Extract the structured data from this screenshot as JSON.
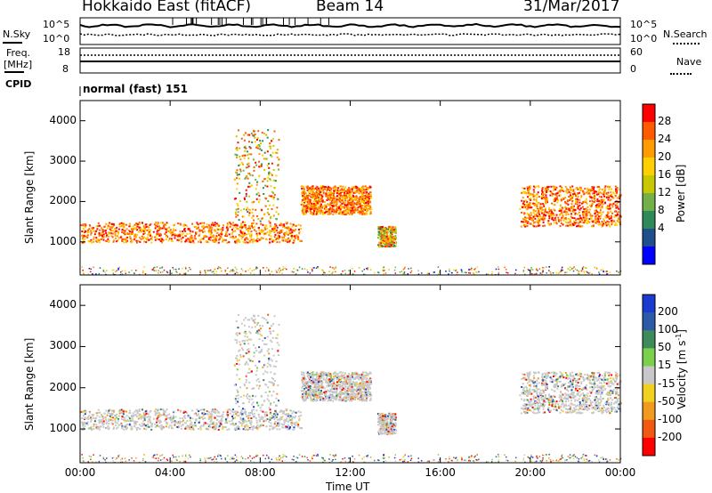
{
  "header": {
    "station": "Hokkaido East (fitACF)",
    "beam": "Beam 14",
    "date": "31/Mar/2017"
  },
  "sidebar_labels": {
    "nsky": "N.Sky",
    "freq": "Freq.",
    "freq_unit": "[MHz]",
    "cpid": "CPID",
    "nsearch": "N.Search",
    "nave": "Nave"
  },
  "top_axes": {
    "nsky_hi": "10^5",
    "nsky_lo": "10^0",
    "nsearch_hi": "10^5",
    "nsearch_lo": "10^0",
    "freq_hi": "18",
    "freq_lo": "8",
    "nave_hi": "60",
    "nave_lo": "0"
  },
  "cpid_text": "normal (fast) 151",
  "chart_data": [
    {
      "type": "heatmap",
      "panel": "power",
      "ylabel": "Slant Range [km]",
      "colorbar_label": "Power [dB]",
      "colorbar_ticks": [
        "28",
        "24",
        "20",
        "16",
        "12",
        "8",
        "4"
      ],
      "colorbar_colors": [
        "#ff0000",
        "#ff5a00",
        "#ff9a00",
        "#ffd000",
        "#c8c800",
        "#74b048",
        "#2f8a5a",
        "#20508c",
        "#0000ff"
      ],
      "y_ticks": [
        "4000",
        "3000",
        "2000",
        "1000"
      ],
      "ylim": [
        180,
        4500
      ],
      "xlim_hours": [
        0,
        24
      ],
      "regions": [
        {
          "t0": 0.0,
          "t1": 9.8,
          "r0": 1000,
          "r1": 1500,
          "dense": true
        },
        {
          "t0": 6.8,
          "t1": 8.8,
          "r0": 1500,
          "r1": 3800,
          "dense": false
        },
        {
          "t0": 9.8,
          "t1": 12.9,
          "r0": 1700,
          "r1": 2400,
          "dense": true
        },
        {
          "t0": 13.2,
          "t1": 14.0,
          "r0": 900,
          "r1": 1400,
          "dense": false
        },
        {
          "t0": 19.5,
          "t1": 24.0,
          "r0": 1400,
          "r1": 2400,
          "dense": true
        }
      ]
    },
    {
      "type": "heatmap",
      "panel": "velocity",
      "ylabel": "Slant Range [km]",
      "xlabel": "Time UT",
      "colorbar_label": "Velocity [m s^-1]",
      "colorbar_ticks": [
        "200",
        "100",
        "50",
        "15",
        "-15",
        "-50",
        "-100",
        "-200"
      ],
      "colorbar_colors": [
        "#1a3ad0",
        "#2c5aa8",
        "#3f8a5a",
        "#7ad04a",
        "#c8c8c8",
        "#f0d020",
        "#f09a20",
        "#f05a10",
        "#ff0000"
      ],
      "y_ticks": [
        "4000",
        "3000",
        "2000",
        "1000"
      ],
      "x_ticks": [
        "00:00",
        "04:00",
        "08:00",
        "12:00",
        "16:00",
        "20:00",
        "00:00"
      ],
      "ylim": [
        180,
        4500
      ],
      "xlim_hours": [
        0,
        24
      ]
    }
  ]
}
